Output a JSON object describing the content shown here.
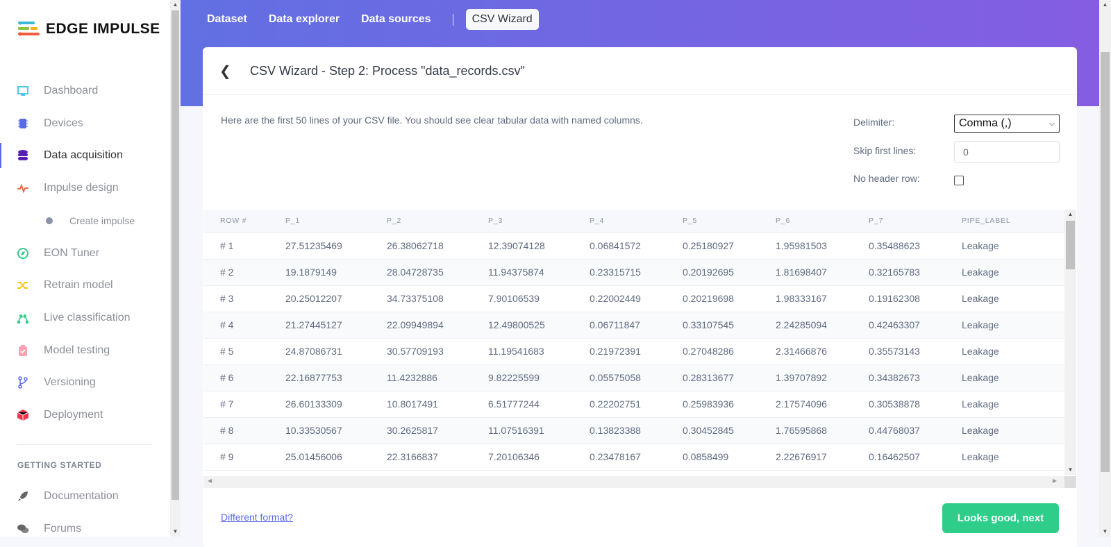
{
  "brand": {
    "name": "EDGE IMPULSE"
  },
  "sidebar": {
    "items": [
      {
        "label": "Dashboard",
        "icon": "monitor-icon",
        "color": "#4cc9e8"
      },
      {
        "label": "Devices",
        "icon": "chip-icon",
        "color": "#5b6ae6"
      },
      {
        "label": "Data acquisition",
        "icon": "database-icon",
        "color": "#5a1fb3",
        "active": true
      },
      {
        "label": "Impulse design",
        "icon": "pulse-icon",
        "color": "#f25a3c"
      },
      {
        "label": "Create impulse",
        "icon": "dot-icon",
        "color": "#8a94a6",
        "sub": true
      },
      {
        "label": "EON Tuner",
        "icon": "compass-icon",
        "color": "#2ecd8a"
      },
      {
        "label": "Retrain model",
        "icon": "shuffle-icon",
        "color": "#f5c518"
      },
      {
        "label": "Live classification",
        "icon": "nodes-icon",
        "color": "#2ecd8a"
      },
      {
        "label": "Model testing",
        "icon": "clipboard-check-icon",
        "color": "#f7a3b3"
      },
      {
        "label": "Versioning",
        "icon": "branch-icon",
        "color": "#5b6ae6"
      },
      {
        "label": "Deployment",
        "icon": "cube-icon",
        "color": "#f2334d"
      }
    ],
    "section_title": "GETTING STARTED",
    "section_items": [
      {
        "label": "Documentation",
        "icon": "rocket-icon"
      },
      {
        "label": "Forums",
        "icon": "chat-icon"
      }
    ]
  },
  "tabs": [
    "Dataset",
    "Data explorer",
    "Data sources",
    "CSV Wizard"
  ],
  "active_tab": "CSV Wizard",
  "card": {
    "title": "CSV Wizard - Step 2: Process \"data_records.csv\"",
    "description": "Here are the first 50 lines of your CSV file. You should see clear tabular data with named columns.",
    "delimiter_label": "Delimiter:",
    "delimiter_value": "Comma (,)",
    "skip_label": "Skip first lines:",
    "skip_value": "0",
    "no_header_label": "No header row:",
    "no_header_checked": false,
    "different_format": "Different format?",
    "next_button": "Looks good, next"
  },
  "table": {
    "columns": [
      "ROW #",
      "P_1",
      "P_2",
      "P_3",
      "P_4",
      "P_5",
      "P_6",
      "P_7",
      "PIPE_LABEL"
    ],
    "rows": [
      [
        "# 1",
        "27.51235469",
        "26.38062718",
        "12.39074128",
        "0.06841572",
        "0.25180927",
        "1.95981503",
        "0.35488623",
        "Leakage"
      ],
      [
        "# 2",
        "19.1879149",
        "28.04728735",
        "11.94375874",
        "0.23315715",
        "0.20192695",
        "1.81698407",
        "0.32165783",
        "Leakage"
      ],
      [
        "# 3",
        "20.25012207",
        "34.73375108",
        "7.90106539",
        "0.22002449",
        "0.20219698",
        "1.98333167",
        "0.19162308",
        "Leakage"
      ],
      [
        "# 4",
        "21.27445127",
        "22.09949894",
        "12.49800525",
        "0.06711847",
        "0.33107545",
        "2.24285094",
        "0.42463307",
        "Leakage"
      ],
      [
        "# 5",
        "24.87086731",
        "30.57709193",
        "11.19541683",
        "0.21972391",
        "0.27048286",
        "2.31466876",
        "0.35573143",
        "Leakage"
      ],
      [
        "# 6",
        "22.16877753",
        "11.4232886",
        "9.82225599",
        "0.05575058",
        "0.28313677",
        "1.39707892",
        "0.34382673",
        "Leakage"
      ],
      [
        "# 7",
        "26.60133309",
        "10.8017491",
        "6.51777244",
        "0.22202751",
        "0.25983936",
        "2.17574096",
        "0.30538878",
        "Leakage"
      ],
      [
        "# 8",
        "10.33530567",
        "30.2625817",
        "11.07516391",
        "0.13823388",
        "0.30452845",
        "1.76595868",
        "0.44768037",
        "Leakage"
      ],
      [
        "# 9",
        "25.01456006",
        "22.3166837",
        "7.20106346",
        "0.23478167",
        "0.0858499",
        "2.22676917",
        "0.16462507",
        "Leakage"
      ]
    ]
  }
}
